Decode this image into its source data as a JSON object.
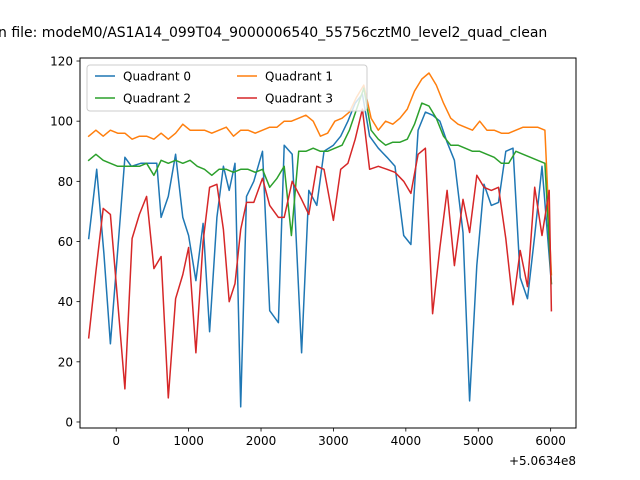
{
  "chart_data": {
    "type": "line",
    "title": "n file: modeM0/AS1A14_099T04_9000006540_55756cztM0_level2_quad_clean",
    "xlabel": "",
    "ylabel": "",
    "x_offset_label": "+5.0634e8",
    "xlim": [
      -500,
      6350
    ],
    "ylim": [
      -2,
      121
    ],
    "x_ticks": [
      0,
      1000,
      2000,
      3000,
      4000,
      5000,
      6000
    ],
    "y_ticks": [
      0,
      20,
      40,
      60,
      80,
      100,
      120
    ],
    "grid": false,
    "legend": {
      "placement": "top-left",
      "columns": 2
    },
    "series": [
      {
        "name": "Quadrant 0",
        "color": "#1f77b4",
        "points": [
          [
            -380,
            61
          ],
          [
            -270,
            84
          ],
          [
            -170,
            56
          ],
          [
            -80,
            26
          ],
          [
            30,
            60
          ],
          [
            120,
            88
          ],
          [
            210,
            85
          ],
          [
            340,
            86
          ],
          [
            470,
            86
          ],
          [
            560,
            86
          ],
          [
            620,
            68
          ],
          [
            720,
            75
          ],
          [
            820,
            89
          ],
          [
            920,
            68
          ],
          [
            1000,
            62
          ],
          [
            1100,
            47
          ],
          [
            1200,
            66
          ],
          [
            1290,
            30
          ],
          [
            1390,
            68
          ],
          [
            1480,
            85
          ],
          [
            1560,
            77
          ],
          [
            1640,
            86
          ],
          [
            1720,
            5
          ],
          [
            1800,
            75
          ],
          [
            1900,
            80
          ],
          [
            2020,
            90
          ],
          [
            2120,
            37
          ],
          [
            2240,
            33
          ],
          [
            2320,
            92
          ],
          [
            2430,
            89
          ],
          [
            2560,
            23
          ],
          [
            2660,
            77
          ],
          [
            2770,
            72
          ],
          [
            2870,
            90
          ],
          [
            3000,
            92
          ],
          [
            3100,
            95
          ],
          [
            3200,
            100
          ],
          [
            3300,
            106
          ],
          [
            3400,
            109
          ],
          [
            3500,
            95
          ],
          [
            3620,
            91
          ],
          [
            3740,
            88
          ],
          [
            3850,
            85
          ],
          [
            3970,
            62
          ],
          [
            4070,
            59
          ],
          [
            4170,
            97
          ],
          [
            4270,
            103
          ],
          [
            4370,
            102
          ],
          [
            4470,
            100
          ],
          [
            4570,
            93
          ],
          [
            4670,
            87
          ],
          [
            4790,
            63
          ],
          [
            4880,
            7
          ],
          [
            4980,
            52
          ],
          [
            5080,
            79
          ],
          [
            5180,
            72
          ],
          [
            5280,
            73
          ],
          [
            5380,
            90
          ],
          [
            5480,
            91
          ],
          [
            5580,
            48
          ],
          [
            5680,
            41
          ],
          [
            5780,
            62
          ],
          [
            5880,
            85
          ],
          [
            6010,
            46
          ]
        ]
      },
      {
        "name": "Quadrant 1",
        "color": "#ff7f0e",
        "points": [
          [
            -380,
            95
          ],
          [
            -280,
            97
          ],
          [
            -180,
            95
          ],
          [
            -80,
            97
          ],
          [
            20,
            96
          ],
          [
            120,
            96
          ],
          [
            220,
            94
          ],
          [
            320,
            95
          ],
          [
            420,
            95
          ],
          [
            520,
            94
          ],
          [
            620,
            96
          ],
          [
            720,
            94
          ],
          [
            820,
            96
          ],
          [
            920,
            99
          ],
          [
            1020,
            97
          ],
          [
            1120,
            97
          ],
          [
            1220,
            97
          ],
          [
            1320,
            96
          ],
          [
            1420,
            97
          ],
          [
            1520,
            98
          ],
          [
            1620,
            95
          ],
          [
            1720,
            97
          ],
          [
            1820,
            97
          ],
          [
            1920,
            96
          ],
          [
            2020,
            97
          ],
          [
            2120,
            98
          ],
          [
            2220,
            98
          ],
          [
            2320,
            100
          ],
          [
            2420,
            100
          ],
          [
            2520,
            101
          ],
          [
            2620,
            102
          ],
          [
            2720,
            100
          ],
          [
            2820,
            95
          ],
          [
            2920,
            96
          ],
          [
            3020,
            100
          ],
          [
            3120,
            101
          ],
          [
            3220,
            103
          ],
          [
            3320,
            108
          ],
          [
            3420,
            112
          ],
          [
            3520,
            101
          ],
          [
            3620,
            97
          ],
          [
            3720,
            100
          ],
          [
            3820,
            99
          ],
          [
            3920,
            101
          ],
          [
            4020,
            104
          ],
          [
            4120,
            110
          ],
          [
            4220,
            114
          ],
          [
            4320,
            116
          ],
          [
            4420,
            112
          ],
          [
            4520,
            106
          ],
          [
            4620,
            101
          ],
          [
            4720,
            99
          ],
          [
            4820,
            98
          ],
          [
            4920,
            97
          ],
          [
            5020,
            100
          ],
          [
            5120,
            97
          ],
          [
            5220,
            97
          ],
          [
            5320,
            96
          ],
          [
            5420,
            96
          ],
          [
            5520,
            97
          ],
          [
            5620,
            98
          ],
          [
            5720,
            98
          ],
          [
            5820,
            98
          ],
          [
            5920,
            97
          ],
          [
            6010,
            49
          ]
        ]
      },
      {
        "name": "Quadrant 2",
        "color": "#2ca02c",
        "points": [
          [
            -380,
            87
          ],
          [
            -280,
            89
          ],
          [
            -180,
            87
          ],
          [
            -80,
            86
          ],
          [
            20,
            85
          ],
          [
            120,
            85
          ],
          [
            220,
            85
          ],
          [
            320,
            85
          ],
          [
            420,
            86
          ],
          [
            520,
            82
          ],
          [
            620,
            87
          ],
          [
            720,
            86
          ],
          [
            820,
            87
          ],
          [
            920,
            86
          ],
          [
            1020,
            87
          ],
          [
            1120,
            85
          ],
          [
            1220,
            84
          ],
          [
            1320,
            82
          ],
          [
            1420,
            84
          ],
          [
            1520,
            84
          ],
          [
            1620,
            83
          ],
          [
            1720,
            84
          ],
          [
            1820,
            84
          ],
          [
            1920,
            83
          ],
          [
            2020,
            84
          ],
          [
            2120,
            78
          ],
          [
            2220,
            81
          ],
          [
            2320,
            85
          ],
          [
            2420,
            62
          ],
          [
            2520,
            90
          ],
          [
            2620,
            90
          ],
          [
            2720,
            91
          ],
          [
            2820,
            90
          ],
          [
            2920,
            90
          ],
          [
            3020,
            91
          ],
          [
            3120,
            92
          ],
          [
            3220,
            97
          ],
          [
            3320,
            104
          ],
          [
            3420,
            111
          ],
          [
            3520,
            97
          ],
          [
            3620,
            94
          ],
          [
            3720,
            92
          ],
          [
            3820,
            93
          ],
          [
            3920,
            93
          ],
          [
            4020,
            94
          ],
          [
            4120,
            99
          ],
          [
            4220,
            106
          ],
          [
            4320,
            105
          ],
          [
            4420,
            101
          ],
          [
            4520,
            95
          ],
          [
            4620,
            92
          ],
          [
            4720,
            92
          ],
          [
            4820,
            91
          ],
          [
            4920,
            90
          ],
          [
            5020,
            90
          ],
          [
            5120,
            89
          ],
          [
            5220,
            88
          ],
          [
            5320,
            86
          ],
          [
            5420,
            86
          ],
          [
            5520,
            90
          ],
          [
            5620,
            89
          ],
          [
            5720,
            88
          ],
          [
            5820,
            87
          ],
          [
            5920,
            86
          ],
          [
            6010,
            46
          ]
        ]
      },
      {
        "name": "Quadrant 3",
        "color": "#d62728",
        "points": [
          [
            -380,
            28
          ],
          [
            -280,
            50
          ],
          [
            -180,
            71
          ],
          [
            -80,
            69
          ],
          [
            20,
            40
          ],
          [
            120,
            11
          ],
          [
            220,
            61
          ],
          [
            320,
            69
          ],
          [
            420,
            75
          ],
          [
            520,
            51
          ],
          [
            620,
            55
          ],
          [
            720,
            8
          ],
          [
            820,
            41
          ],
          [
            920,
            49
          ],
          [
            1000,
            58
          ],
          [
            1100,
            23
          ],
          [
            1200,
            60
          ],
          [
            1290,
            78
          ],
          [
            1390,
            79
          ],
          [
            1480,
            64
          ],
          [
            1560,
            40
          ],
          [
            1640,
            46
          ],
          [
            1720,
            64
          ],
          [
            1800,
            73
          ],
          [
            1900,
            73
          ],
          [
            2020,
            81
          ],
          [
            2120,
            72
          ],
          [
            2240,
            68
          ],
          [
            2320,
            68
          ],
          [
            2430,
            80
          ],
          [
            2560,
            74
          ],
          [
            2660,
            69
          ],
          [
            2770,
            85
          ],
          [
            2870,
            84
          ],
          [
            3000,
            67
          ],
          [
            3100,
            84
          ],
          [
            3200,
            86
          ],
          [
            3300,
            94
          ],
          [
            3400,
            104
          ],
          [
            3500,
            84
          ],
          [
            3620,
            85
          ],
          [
            3740,
            84
          ],
          [
            3850,
            83
          ],
          [
            3970,
            80
          ],
          [
            4070,
            76
          ],
          [
            4170,
            89
          ],
          [
            4270,
            91
          ],
          [
            4370,
            36
          ],
          [
            4470,
            58
          ],
          [
            4570,
            77
          ],
          [
            4670,
            52
          ],
          [
            4790,
            74
          ],
          [
            4880,
            63
          ],
          [
            4980,
            82
          ],
          [
            5080,
            78
          ],
          [
            5180,
            77
          ],
          [
            5280,
            78
          ],
          [
            5380,
            61
          ],
          [
            5480,
            39
          ],
          [
            5580,
            57
          ],
          [
            5680,
            45
          ],
          [
            5780,
            78
          ],
          [
            5880,
            62
          ],
          [
            5980,
            77
          ],
          [
            6010,
            37
          ]
        ]
      }
    ]
  }
}
